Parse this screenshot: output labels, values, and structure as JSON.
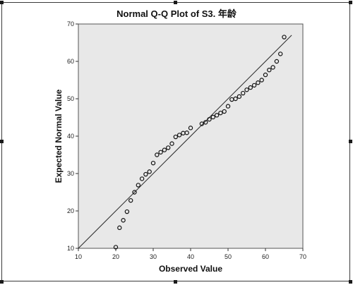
{
  "chart_data": {
    "type": "scatter",
    "title": "Normal Q-Q Plot of S3. 年龄",
    "xlabel": "Observed Value",
    "ylabel": "Expected Normal Value",
    "xlim": [
      10,
      70
    ],
    "ylim": [
      10,
      70
    ],
    "xticks": [
      "10",
      "20",
      "30",
      "40",
      "50",
      "60",
      "70"
    ],
    "yticks": [
      "10",
      "20",
      "30",
      "40",
      "50",
      "60",
      "70"
    ],
    "grid": false,
    "plot_background": "#e8e8e8",
    "marker": "open-circle",
    "reference_line": {
      "from": [
        10,
        10
      ],
      "to": [
        67,
        67
      ]
    },
    "points": [
      [
        20,
        10.3
      ],
      [
        21,
        15.5
      ],
      [
        22,
        17.5
      ],
      [
        23,
        19.8
      ],
      [
        24,
        22.8
      ],
      [
        25,
        25.0
      ],
      [
        26,
        26.9
      ],
      [
        27,
        28.6
      ],
      [
        28,
        29.8
      ],
      [
        29,
        30.5
      ],
      [
        30,
        32.8
      ],
      [
        31,
        35.0
      ],
      [
        32,
        35.7
      ],
      [
        33,
        36.3
      ],
      [
        34,
        36.9
      ],
      [
        35,
        38.0
      ],
      [
        36,
        39.8
      ],
      [
        37,
        40.3
      ],
      [
        38,
        40.8
      ],
      [
        39,
        40.9
      ],
      [
        40,
        42.2
      ],
      [
        43,
        43.3
      ],
      [
        44,
        43.7
      ],
      [
        45,
        44.5
      ],
      [
        46,
        45.1
      ],
      [
        47,
        45.6
      ],
      [
        48,
        46.2
      ],
      [
        49,
        46.6
      ],
      [
        50,
        48.0
      ],
      [
        51,
        49.8
      ],
      [
        52,
        50.0
      ],
      [
        53,
        50.6
      ],
      [
        54,
        51.5
      ],
      [
        55,
        52.4
      ],
      [
        56,
        53.0
      ],
      [
        57,
        53.6
      ],
      [
        58,
        54.3
      ],
      [
        59,
        55.0
      ],
      [
        60,
        56.4
      ],
      [
        61,
        57.7
      ],
      [
        62,
        58.4
      ],
      [
        63,
        60.0
      ],
      [
        64,
        62.0
      ],
      [
        65,
        66.5
      ]
    ]
  }
}
